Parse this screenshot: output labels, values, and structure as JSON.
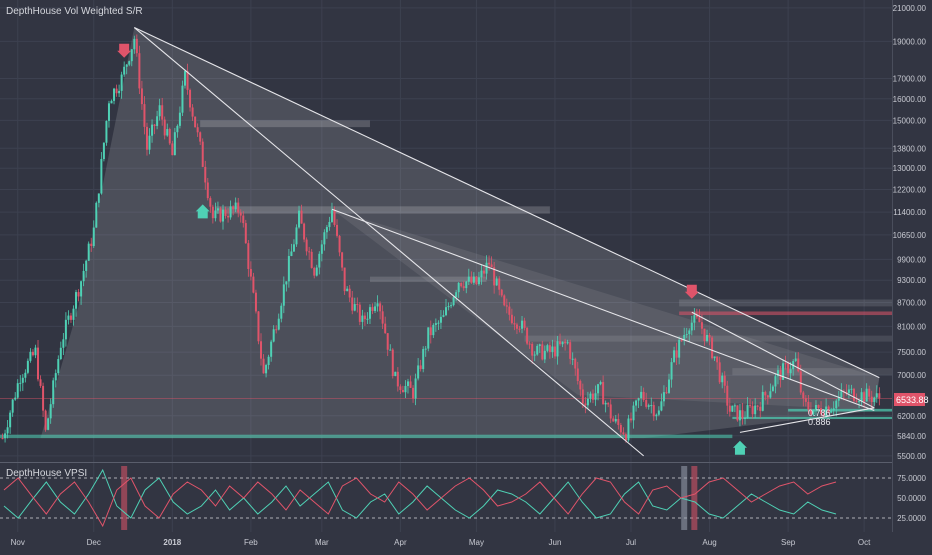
{
  "header": {
    "main_indicator": "DepthHouse Vol Weighted S/R",
    "sub_indicator": "DepthHouse VPSI"
  },
  "price_tag": "6533.88",
  "colors": {
    "background": "#323542",
    "grid": "#3d4150",
    "axis_text": "#c8cad2",
    "up": "#4fd1b5",
    "down": "#e0546a",
    "trendline": "#e6e6ea",
    "price_tag": "#e0546a"
  },
  "fib_labels": [
    "0.786",
    "0.886"
  ],
  "chart_data": [
    {
      "type": "candlestick",
      "title": "",
      "y_axis_labels": [
        "21000.00",
        "19000.00",
        "17000.00",
        "16000.00",
        "15000.00",
        "13800.00",
        "13000.00",
        "12200.00",
        "11400.00",
        "10650.00",
        "9900.00",
        "9300.00",
        "8700.00",
        "8100.00",
        "7500.00",
        "7000.00",
        "6200.00",
        "5840.00",
        "5500.00"
      ],
      "x_axis_labels": [
        "Nov",
        "Dec",
        "2018",
        "Feb",
        "Mar",
        "Apr",
        "May",
        "Jun",
        "Jul",
        "Aug",
        "Sep",
        "Oct"
      ],
      "ylim": [
        5400,
        21500
      ],
      "y_scale": "log",
      "last_price": 6533.88,
      "trendlines": [
        {
          "from": [
            "2017-12-17",
            19800
          ],
          "to": [
            "2018-10-07",
            6950
          ]
        },
        {
          "from": [
            "2017-12-17",
            19800
          ],
          "to": [
            "2018-07-06",
            5500
          ]
        },
        {
          "from": [
            "2018-03-05",
            11500
          ],
          "to": [
            "2018-10-05",
            6300
          ]
        },
        {
          "from": [
            "2018-07-25",
            8450
          ],
          "to": [
            "2018-10-05",
            6350
          ]
        },
        {
          "from": [
            "2018-08-13",
            5900
          ],
          "to": [
            "2018-10-05",
            6350
          ]
        }
      ],
      "close_path": [
        [
          "2017-10-26",
          5800
        ],
        [
          "2017-11-02",
          7000
        ],
        [
          "2017-11-08",
          7500
        ],
        [
          "2017-11-12",
          5900
        ],
        [
          "2017-11-18",
          7700
        ],
        [
          "2017-11-26",
          9300
        ],
        [
          "2017-12-01",
          10800
        ],
        [
          "2017-12-07",
          16000
        ],
        [
          "2017-12-12",
          17000
        ],
        [
          "2017-12-17",
          19200
        ],
        [
          "2017-12-22",
          13800
        ],
        [
          "2017-12-27",
          15500
        ],
        [
          "2018-01-01",
          13500
        ],
        [
          "2018-01-06",
          17100
        ],
        [
          "2018-01-12",
          13800
        ],
        [
          "2018-01-17",
          11200
        ],
        [
          "2018-01-22",
          11400
        ],
        [
          "2018-01-28",
          11500
        ],
        [
          "2018-02-02",
          8800
        ],
        [
          "2018-02-06",
          7000
        ],
        [
          "2018-02-12",
          8500
        ],
        [
          "2018-02-20",
          11200
        ],
        [
          "2018-02-26",
          9600
        ],
        [
          "2018-03-05",
          11500
        ],
        [
          "2018-03-10",
          9100
        ],
        [
          "2018-03-17",
          8200
        ],
        [
          "2018-03-23",
          8900
        ],
        [
          "2018-03-30",
          6900
        ],
        [
          "2018-04-06",
          6650
        ],
        [
          "2018-04-12",
          7900
        ],
        [
          "2018-04-18",
          8300
        ],
        [
          "2018-04-24",
          9300
        ],
        [
          "2018-05-01",
          9200
        ],
        [
          "2018-05-06",
          9800
        ],
        [
          "2018-05-12",
          8500
        ],
        [
          "2018-05-18",
          8200
        ],
        [
          "2018-05-24",
          7500
        ],
        [
          "2018-05-30",
          7500
        ],
        [
          "2018-06-06",
          7700
        ],
        [
          "2018-06-12",
          6500
        ],
        [
          "2018-06-19",
          6700
        ],
        [
          "2018-06-24",
          6100
        ],
        [
          "2018-06-29",
          5900
        ],
        [
          "2018-07-05",
          6600
        ],
        [
          "2018-07-12",
          6250
        ],
        [
          "2018-07-18",
          7400
        ],
        [
          "2018-07-24",
          8200
        ],
        [
          "2018-07-28",
          8200
        ],
        [
          "2018-08-03",
          7400
        ],
        [
          "2018-08-09",
          6300
        ],
        [
          "2018-08-14",
          6200
        ],
        [
          "2018-08-21",
          6450
        ],
        [
          "2018-08-28",
          7000
        ],
        [
          "2018-09-04",
          7300
        ],
        [
          "2018-09-07",
          6400
        ],
        [
          "2018-09-12",
          6300
        ],
        [
          "2018-09-18",
          6400
        ],
        [
          "2018-09-24",
          6650
        ],
        [
          "2018-09-30",
          6600
        ],
        [
          "2018-10-07",
          6533.88
        ]
      ],
      "annotations": [
        {
          "type": "arrow-down",
          "date": "2017-12-13",
          "price": 18200,
          "color": "down"
        },
        {
          "type": "arrow-up",
          "date": "2018-01-13",
          "price": 11600,
          "color": "up"
        },
        {
          "type": "arrow-down",
          "date": "2018-07-25",
          "price": 8850,
          "color": "down"
        },
        {
          "type": "arrow-up",
          "date": "2018-08-13",
          "price": 5720,
          "color": "up"
        }
      ]
    },
    {
      "type": "line",
      "title": "",
      "y_axis_labels": [
        "75.0000",
        "50.0000",
        "25.0000"
      ],
      "ylim": [
        10,
        90
      ],
      "levels": [
        75,
        25
      ],
      "series": [
        {
          "color": "up",
          "values": [
            40,
            25,
            48,
            70,
            45,
            30,
            55,
            85,
            40,
            25,
            60,
            75,
            45,
            30,
            40,
            60,
            35,
            50,
            30,
            45,
            65,
            40,
            55,
            70,
            35,
            25,
            45,
            55,
            30,
            45,
            65,
            50,
            35,
            25,
            40,
            60,
            55,
            45,
            30,
            50,
            70,
            45,
            25,
            30,
            55,
            70,
            40,
            35,
            50,
            45,
            30,
            25,
            40,
            55,
            45,
            35,
            30,
            45,
            35,
            30
          ]
        },
        {
          "color": "down",
          "values": [
            60,
            75,
            52,
            30,
            55,
            70,
            45,
            15,
            60,
            75,
            40,
            25,
            55,
            70,
            60,
            40,
            65,
            50,
            70,
            55,
            35,
            60,
            45,
            30,
            65,
            75,
            55,
            45,
            70,
            55,
            35,
            50,
            65,
            75,
            60,
            40,
            45,
            55,
            70,
            50,
            30,
            55,
            75,
            70,
            45,
            30,
            60,
            65,
            50,
            55,
            70,
            75,
            60,
            45,
            55,
            65,
            70,
            55,
            65,
            70
          ]
        }
      ]
    }
  ]
}
